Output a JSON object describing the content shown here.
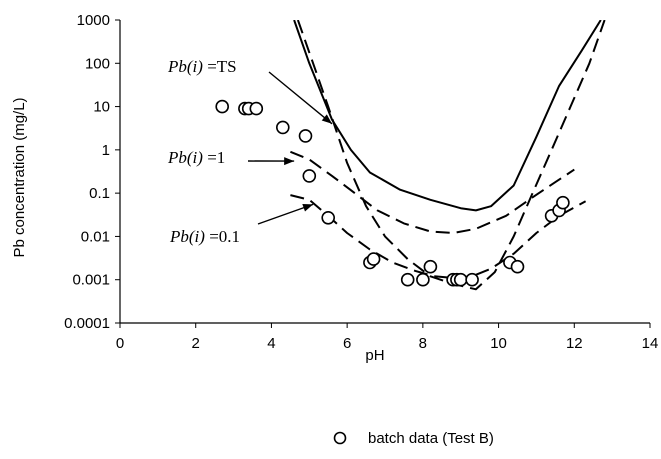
{
  "chart_data": {
    "type": "scatter",
    "xlabel": "pH",
    "ylabel": "Pb concentration (mg/L)",
    "xlim": [
      0,
      14
    ],
    "ylim": [
      0.0001,
      1000
    ],
    "y_scale": "log",
    "x_ticks": [
      "0",
      "2",
      "4",
      "6",
      "8",
      "10",
      "12",
      "14"
    ],
    "y_ticks": [
      "1000",
      "100",
      "10",
      "1",
      "0.1",
      "0.01",
      "0.001",
      "0.0001"
    ],
    "grid": false,
    "legend": {
      "position": "bottom",
      "entries": [
        {
          "label": "batch data (Test B)",
          "marker": "circle"
        }
      ]
    },
    "series": [
      {
        "name": "batch data (Test B)",
        "style": "marker",
        "points": [
          [
            2.7,
            10
          ],
          [
            3.3,
            9
          ],
          [
            3.4,
            9
          ],
          [
            3.6,
            9
          ],
          [
            4.3,
            3.3
          ],
          [
            4.9,
            2.1
          ],
          [
            5.0,
            0.25
          ],
          [
            5.5,
            0.027
          ],
          [
            6.6,
            0.0025
          ],
          [
            6.7,
            0.003
          ],
          [
            7.6,
            0.001
          ],
          [
            8.0,
            0.001
          ],
          [
            8.2,
            0.002
          ],
          [
            8.8,
            0.001
          ],
          [
            8.9,
            0.001
          ],
          [
            9.0,
            0.001
          ],
          [
            9.3,
            0.001
          ],
          [
            10.3,
            0.0025
          ],
          [
            10.5,
            0.002
          ],
          [
            11.4,
            0.03
          ],
          [
            11.6,
            0.04
          ],
          [
            11.7,
            0.06
          ]
        ]
      },
      {
        "style": "solid",
        "points": [
          [
            4.6,
            1000
          ],
          [
            5.0,
            100
          ],
          [
            5.6,
            5
          ],
          [
            6.1,
            1
          ],
          [
            6.6,
            0.3
          ],
          [
            7.4,
            0.12
          ],
          [
            8.2,
            0.07
          ],
          [
            9.0,
            0.045
          ],
          [
            9.4,
            0.04
          ],
          [
            9.8,
            0.05
          ],
          [
            10.4,
            0.15
          ],
          [
            11.0,
            2
          ],
          [
            11.6,
            30
          ],
          [
            12.2,
            200
          ],
          [
            12.7,
            1000
          ]
        ]
      },
      {
        "style": "dashed",
        "points": [
          [
            4.7,
            1000
          ],
          [
            5.1,
            100
          ],
          [
            5.5,
            10
          ],
          [
            6.0,
            0.5
          ],
          [
            6.5,
            0.05
          ],
          [
            7.0,
            0.01
          ],
          [
            7.6,
            0.003
          ],
          [
            8.2,
            0.0012
          ],
          [
            8.8,
            0.0008
          ],
          [
            9.4,
            0.0006
          ],
          [
            9.9,
            0.0015
          ],
          [
            10.4,
            0.01
          ],
          [
            10.9,
            0.1
          ],
          [
            11.4,
            1
          ],
          [
            11.9,
            10
          ],
          [
            12.4,
            100
          ],
          [
            12.8,
            1000
          ]
        ]
      },
      {
        "style": "dashed",
        "points": [
          [
            4.5,
            0.9
          ],
          [
            5.0,
            0.6
          ],
          [
            5.6,
            0.25
          ],
          [
            6.2,
            0.1
          ],
          [
            6.8,
            0.04
          ],
          [
            7.5,
            0.02
          ],
          [
            8.2,
            0.013
          ],
          [
            8.8,
            0.012
          ],
          [
            9.4,
            0.015
          ],
          [
            10.2,
            0.03
          ],
          [
            10.9,
            0.08
          ],
          [
            11.5,
            0.18
          ],
          [
            12.0,
            0.35
          ]
        ]
      },
      {
        "style": "dashed",
        "points": [
          [
            4.5,
            0.09
          ],
          [
            5.0,
            0.07
          ],
          [
            5.5,
            0.03
          ],
          [
            6.0,
            0.012
          ],
          [
            6.6,
            0.005
          ],
          [
            7.2,
            0.0025
          ],
          [
            7.8,
            0.0016
          ],
          [
            8.3,
            0.0012
          ],
          [
            8.8,
            0.0011
          ],
          [
            9.3,
            0.0012
          ],
          [
            9.8,
            0.0018
          ],
          [
            10.4,
            0.004
          ],
          [
            11.0,
            0.012
          ],
          [
            11.6,
            0.03
          ],
          [
            12.3,
            0.065
          ]
        ]
      }
    ],
    "annotations": [
      {
        "var": "Pb(i)",
        "value": "=TS",
        "target": [
          5.6,
          4
        ]
      },
      {
        "var": "Pb(i)",
        "value": "=1",
        "target": [
          4.6,
          0.55
        ]
      },
      {
        "var": "Pb(i)",
        "value": "=0.1",
        "target": [
          5.1,
          0.055
        ]
      }
    ],
    "colors": {
      "line": "#000000",
      "marker_fill": "#ffffff"
    }
  }
}
